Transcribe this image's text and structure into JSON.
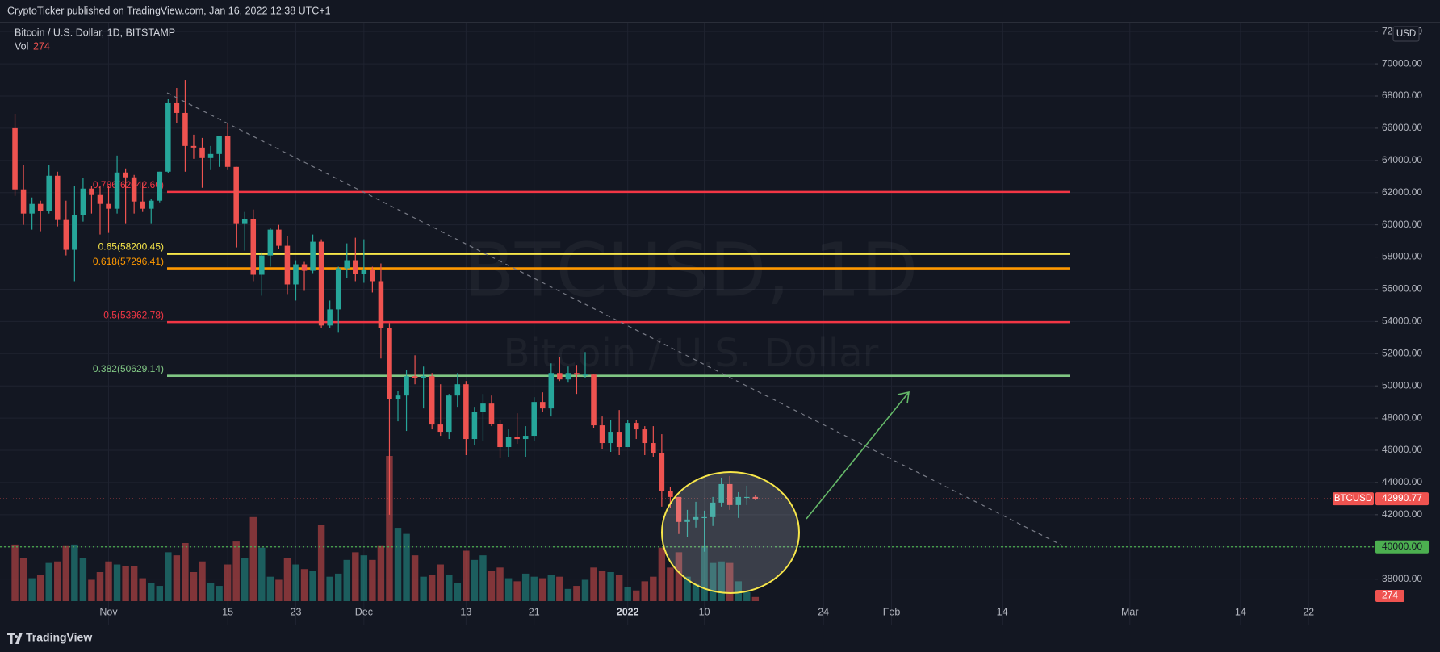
{
  "header": "CryptoTicker published on TradingView.com, Jan 16, 2022 12:38 UTC+1",
  "footer": "TradingView",
  "chart_data": {
    "type": "candlestick",
    "legend": {
      "title": "Bitcoin / U.S. Dollar, 1D, BITSTAMP",
      "volume_label": "Vol"
    },
    "watermark": {
      "symbol": "BTCUSD, 1D",
      "description": "Bitcoin / U.S. Dollar"
    },
    "symbol": "BTCUSD",
    "currency": "USD",
    "up_color": "#26a69a",
    "down_color": "#ef5350",
    "grid": true,
    "x": [
      "2021-10-21",
      "2021-10-22",
      "2021-10-23",
      "2021-10-24",
      "2021-10-25",
      "2021-10-26",
      "2021-10-27",
      "2021-10-28",
      "2021-10-29",
      "2021-10-30",
      "2021-10-31",
      "2021-11-01",
      "2021-11-02",
      "2021-11-03",
      "2021-11-04",
      "2021-11-05",
      "2021-11-06",
      "2021-11-07",
      "2021-11-08",
      "2021-11-09",
      "2021-11-10",
      "2021-11-11",
      "2021-11-12",
      "2021-11-13",
      "2021-11-14",
      "2021-11-15",
      "2021-11-16",
      "2021-11-17",
      "2021-11-18",
      "2021-11-19",
      "2021-11-20",
      "2021-11-21",
      "2021-11-22",
      "2021-11-23",
      "2021-11-24",
      "2021-11-25",
      "2021-11-26",
      "2021-11-27",
      "2021-11-28",
      "2021-11-29",
      "2021-11-30",
      "2021-12-01",
      "2021-12-02",
      "2021-12-03",
      "2021-12-04",
      "2021-12-05",
      "2021-12-06",
      "2021-12-07",
      "2021-12-08",
      "2021-12-09",
      "2021-12-10",
      "2021-12-11",
      "2021-12-12",
      "2021-12-13",
      "2021-12-14",
      "2021-12-15",
      "2021-12-16",
      "2021-12-17",
      "2021-12-18",
      "2021-12-19",
      "2021-12-20",
      "2021-12-21",
      "2021-12-22",
      "2021-12-23",
      "2021-12-24",
      "2021-12-25",
      "2021-12-26",
      "2021-12-27",
      "2021-12-28",
      "2021-12-29",
      "2021-12-30",
      "2021-12-31",
      "2022-01-01",
      "2022-01-02",
      "2022-01-03",
      "2022-01-04",
      "2022-01-05",
      "2022-01-06",
      "2022-01-07",
      "2022-01-08",
      "2022-01-09",
      "2022-01-10",
      "2022-01-11",
      "2022-01-12",
      "2022-01-13",
      "2022-01-14",
      "2022-01-15",
      "2022-01-16"
    ],
    "open": [
      66000,
      62200,
      60700,
      61300,
      60850,
      63050,
      60300,
      58450,
      60600,
      62250,
      61850,
      61300,
      61000,
      63250,
      62950,
      61450,
      61000,
      61500,
      63300,
      67550,
      66950,
      64900,
      64800,
      64150,
      64400,
      65500,
      63600,
      60100,
      60350,
      56900,
      58100,
      59700,
      58700,
      56300,
      57550,
      57150,
      58950,
      53750,
      54750,
      57300,
      57800,
      56950,
      57200,
      56500,
      53600,
      49200,
      49400,
      50600,
      50500,
      50600,
      47600,
      47150,
      49400,
      50100,
      46700,
      48400,
      48900,
      47650,
      46200,
      46850,
      46700,
      46900,
      49000,
      48600,
      50800,
      50400,
      50800,
      50700,
      50700,
      47550,
      46450,
      47150,
      46200,
      47700,
      47300,
      46450,
      45800,
      43450,
      43100,
      41550,
      41700,
      41850,
      41850,
      42750,
      43900,
      42600,
      43100,
      43100
    ],
    "high": [
      66900,
      63700,
      61700,
      61500,
      63700,
      63300,
      61500,
      62400,
      62900,
      62400,
      62400,
      62400,
      64300,
      63500,
      63100,
      62600,
      61600,
      63300,
      67800,
      68500,
      69000,
      65600,
      65400,
      64900,
      65500,
      66300,
      63600,
      60800,
      60950,
      58300,
      59800,
      60000,
      59300,
      57800,
      57700,
      59400,
      59100,
      55300,
      57400,
      58850,
      59200,
      59100,
      57400,
      57600,
      53900,
      49700,
      51000,
      51900,
      51200,
      50800,
      50100,
      49500,
      50800,
      50300,
      48700,
      49500,
      49400,
      47900,
      47300,
      48300,
      47500,
      49300,
      49600,
      51400,
      51800,
      51200,
      51300,
      52100,
      50700,
      48100,
      47900,
      48500,
      47900,
      47900,
      47500,
      47500,
      47000,
      43700,
      43100,
      42300,
      42800,
      42250,
      43100,
      44300,
      44400,
      43400,
      43800,
      43200
    ],
    "low": [
      61800,
      60000,
      59700,
      59600,
      60700,
      59900,
      58100,
      56500,
      60200,
      60700,
      59400,
      59500,
      60700,
      60100,
      60700,
      60800,
      60100,
      61400,
      63200,
      66300,
      63300,
      64100,
      62300,
      63400,
      63600,
      63400,
      58600,
      58400,
      56500,
      55600,
      57400,
      58500,
      55700,
      55300,
      55900,
      57000,
      53600,
      53600,
      53300,
      56700,
      56500,
      56400,
      55800,
      51700,
      42000,
      47800,
      47200,
      50100,
      48600,
      47300,
      46900,
      46700,
      48700,
      45700,
      46300,
      46600,
      47500,
      45500,
      45600,
      46400,
      45600,
      46600,
      48400,
      48100,
      50300,
      50200,
      49500,
      50500,
      47400,
      46100,
      45900,
      45700,
      46200,
      46700,
      45700,
      45600,
      42500,
      42400,
      40800,
      40600,
      41200,
      39700,
      41300,
      42500,
      42300,
      41800,
      42600,
      42900
    ],
    "close": [
      62200,
      60700,
      61300,
      60850,
      63050,
      60300,
      58450,
      60600,
      62250,
      61850,
      61300,
      61000,
      63250,
      62950,
      61450,
      61000,
      61500,
      63300,
      67550,
      66950,
      64900,
      64800,
      64150,
      64400,
      65500,
      63600,
      60100,
      60350,
      56900,
      58100,
      59700,
      58700,
      56300,
      57550,
      57150,
      58950,
      53750,
      54750,
      57300,
      57800,
      56950,
      57200,
      56500,
      53600,
      49200,
      49400,
      50600,
      50500,
      50600,
      47600,
      47150,
      49400,
      50100,
      46700,
      48400,
      48900,
      47650,
      46200,
      46850,
      46700,
      46900,
      49000,
      48600,
      50800,
      50400,
      50800,
      50700,
      50700,
      47550,
      46450,
      47150,
      46200,
      47700,
      47300,
      46450,
      45800,
      43450,
      43100,
      41550,
      41700,
      41850,
      41850,
      42750,
      43900,
      42600,
      43100,
      43100,
      42990.77
    ],
    "volume": [
      3700,
      2800,
      1500,
      1700,
      2500,
      2600,
      3600,
      3700,
      2800,
      1400,
      1900,
      2600,
      2400,
      2300,
      2300,
      1500,
      1200,
      1000,
      3200,
      3000,
      3800,
      1900,
      2600,
      1200,
      1000,
      2400,
      3900,
      2800,
      5500,
      3500,
      1600,
      1400,
      2800,
      2400,
      2100,
      2000,
      5000,
      1600,
      1800,
      2700,
      3200,
      3000,
      2700,
      3600,
      9500,
      4800,
      4400,
      3000,
      1600,
      1700,
      2400,
      1700,
      1200,
      3300,
      2700,
      3000,
      2000,
      2200,
      1500,
      1300,
      1800,
      1600,
      1500,
      1700,
      1600,
      800,
      1000,
      1400,
      2200,
      2000,
      1900,
      1700,
      900,
      700,
      1300,
      1600,
      3500,
      2200,
      3200,
      1600,
      1100,
      3600,
      2500,
      2600,
      2500,
      1300,
      600,
      274
    ],
    "xlim": [
      "2021-10-20",
      "2022-03-29"
    ],
    "xticks": [
      {
        "value": "2021-11-01",
        "label": "Nov"
      },
      {
        "value": "2021-11-15",
        "label": "15"
      },
      {
        "value": "2021-11-23",
        "label": "23"
      },
      {
        "value": "2021-12-01",
        "label": "Dec"
      },
      {
        "value": "2021-12-13",
        "label": "13"
      },
      {
        "value": "2021-12-21",
        "label": "21"
      },
      {
        "value": "2022-01-01",
        "label": "2022"
      },
      {
        "value": "2022-01-10",
        "label": "10"
      },
      {
        "value": "2022-01-24",
        "label": "24"
      },
      {
        "value": "2022-02-01",
        "label": "Feb"
      },
      {
        "value": "2022-02-14",
        "label": "14"
      },
      {
        "value": "2022-03-01",
        "label": "Mar"
      },
      {
        "value": "2022-03-14",
        "label": "14"
      },
      {
        "value": "2022-03-22",
        "label": "22"
      }
    ],
    "ylim": [
      36630,
      72560
    ],
    "yticks": [
      {
        "value": 38000,
        "label": "38000.00"
      },
      {
        "value": 40000,
        "label": "40000.00"
      },
      {
        "value": 42000,
        "label": "42000.00"
      },
      {
        "value": 44000,
        "label": "44000.00"
      },
      {
        "value": 46000,
        "label": "46000.00"
      },
      {
        "value": 48000,
        "label": "48000.00"
      },
      {
        "value": 50000,
        "label": "50000.00"
      },
      {
        "value": 52000,
        "label": "52000.00"
      },
      {
        "value": 54000,
        "label": "54000.00"
      },
      {
        "value": 56000,
        "label": "56000.00"
      },
      {
        "value": 58000,
        "label": "58000.00"
      },
      {
        "value": 60000,
        "label": "60000.00"
      },
      {
        "value": 62000,
        "label": "62000.00"
      },
      {
        "value": 64000,
        "label": "64000.00"
      },
      {
        "value": 66000,
        "label": "66000.00"
      },
      {
        "value": 68000,
        "label": "68000.00"
      },
      {
        "value": 70000,
        "label": "70000.00"
      },
      {
        "value": 72000,
        "label": "72000.00"
      }
    ],
    "fib_levels": [
      {
        "label": "0.786(62042.60)",
        "value": 62042.6,
        "color": "#f23645"
      },
      {
        "label": "0.65(58200.45)",
        "value": 58200.45,
        "color": "#f7e64a"
      },
      {
        "label": "0.618(57296.41)",
        "value": 57296.41,
        "color": "#ff9800"
      },
      {
        "label": "0.5(53962.78)",
        "value": 53962.78,
        "color": "#f23645"
      },
      {
        "label": "0.382(50629.14)",
        "value": 50629.14,
        "color": "#81c784"
      }
    ],
    "alert_level": {
      "value": 40000,
      "label": "40000.00",
      "color": "#4caf50"
    }
  }
}
